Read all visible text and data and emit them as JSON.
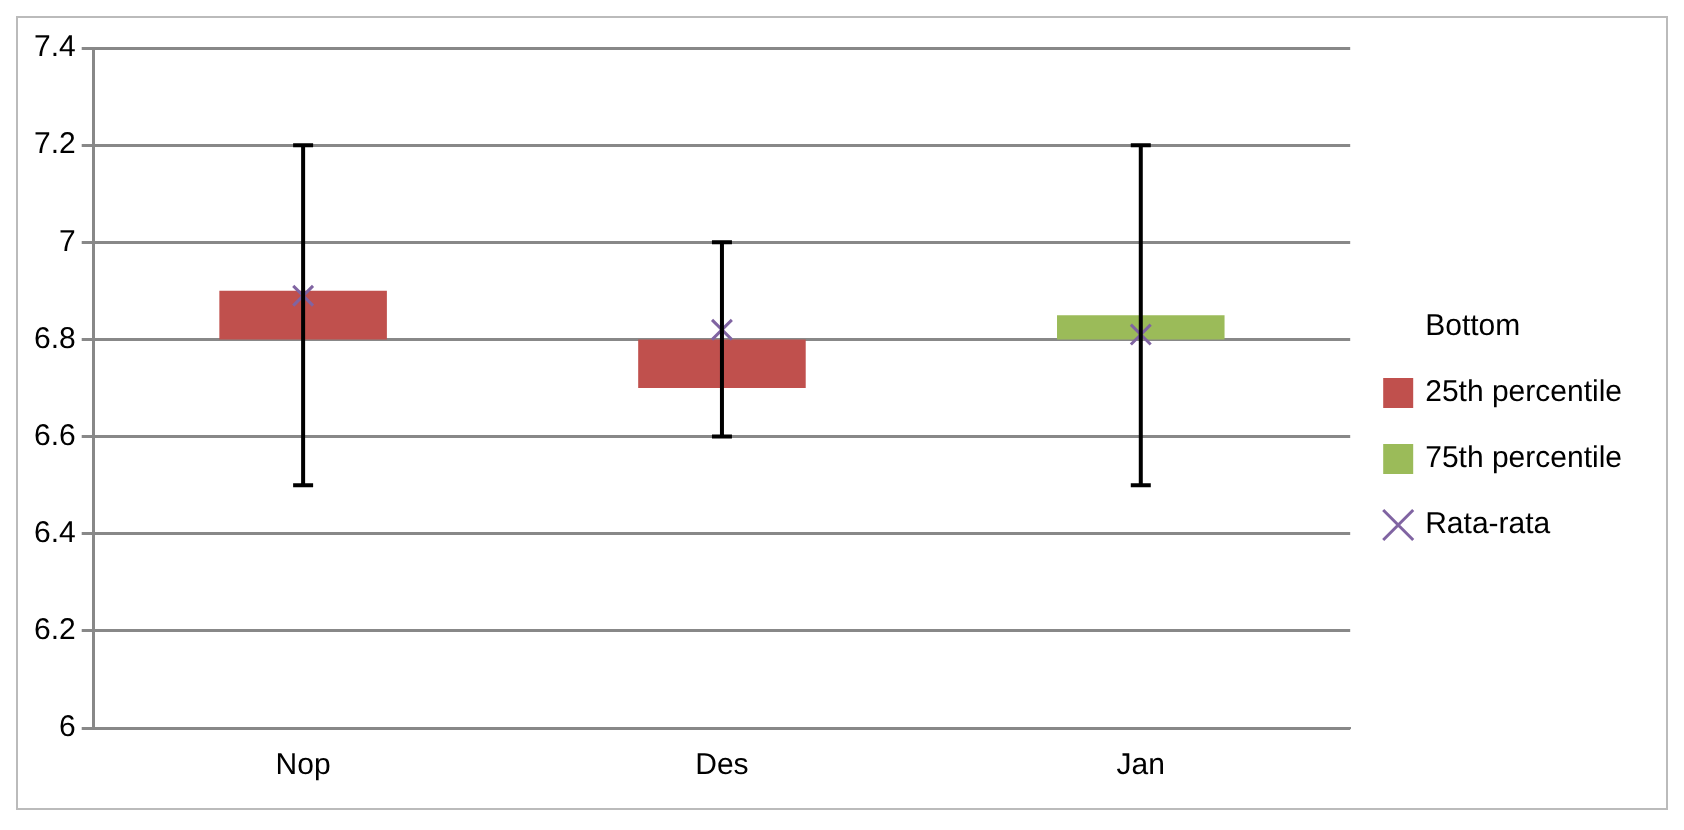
{
  "chart_data": {
    "type": "bar",
    "categories": [
      "Nop",
      "Des",
      "Jan"
    ],
    "series": [
      {
        "name": "Bottom",
        "values": [
          null,
          null,
          null
        ]
      },
      {
        "name": "25th percentile",
        "color": "#c0504d",
        "base": [
          6.8,
          6.7,
          null
        ],
        "values": [
          0.1,
          0.1,
          null
        ]
      },
      {
        "name": "75th percentile",
        "color": "#9bbb59",
        "base": [
          null,
          null,
          6.8
        ],
        "values": [
          null,
          null,
          0.05
        ]
      },
      {
        "name": "Rata-rata",
        "type": "scatter",
        "marker": "cross",
        "color": "#8064a2",
        "x": [
          "Nop",
          "Des",
          "Jan"
        ],
        "values": [
          6.89,
          6.82,
          6.81
        ],
        "errors": [
          [
            6.5,
            7.2
          ],
          [
            6.6,
            7.0
          ],
          [
            6.5,
            7.2
          ]
        ]
      }
    ],
    "ylim": [
      6,
      7.4
    ],
    "yticks": [
      6,
      6.2,
      6.4,
      6.6,
      6.8,
      7,
      7.2,
      7.4
    ],
    "grid": "y",
    "legend": "right"
  }
}
